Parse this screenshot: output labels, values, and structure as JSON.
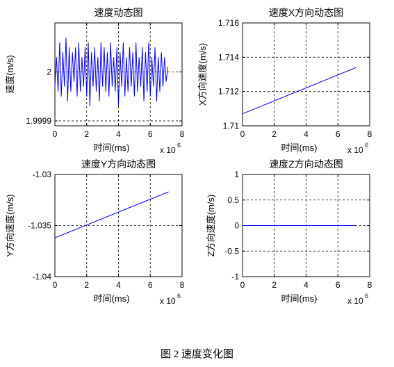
{
  "figure_caption": "图 2  速度变化图",
  "chart_data": [
    {
      "type": "line",
      "title": "速度动态图",
      "xlabel": "时间(ms)",
      "ylabel": "速度(m/s)",
      "x_multiplier": "x 10",
      "x_exponent": "6",
      "xlim": [
        0,
        8
      ],
      "ylim": [
        1.99989,
        2.0001
      ],
      "xticks": [
        "0",
        "2",
        "4",
        "6",
        "8"
      ],
      "yticks": [
        {
          "v": 1.9999,
          "label": "1.9999"
        },
        {
          "v": 2.0,
          "label": "2"
        }
      ],
      "grid": true,
      "line_color": "#0000ff",
      "series": [
        {
          "x": [
            0.0,
            0.1,
            0.2,
            0.3,
            0.4,
            0.5,
            0.6,
            0.7,
            0.8,
            0.9,
            1.0,
            1.1,
            1.2,
            1.3,
            1.4,
            1.5,
            1.6,
            1.7,
            1.8,
            1.9,
            2.0,
            2.1,
            2.2,
            2.3,
            2.4,
            2.5,
            2.6,
            2.7,
            2.8,
            2.9,
            3.0,
            3.1,
            3.2,
            3.3,
            3.4,
            3.5,
            3.6,
            3.7,
            3.8,
            3.9,
            4.0,
            4.1,
            4.2,
            4.3,
            4.4,
            4.5,
            4.6,
            4.7,
            4.8,
            4.9,
            5.0,
            5.1,
            5.2,
            5.3,
            5.4,
            5.5,
            5.6,
            5.7,
            5.8,
            5.9,
            6.0,
            6.1,
            6.2,
            6.3,
            6.4,
            6.5,
            6.6,
            6.7,
            6.8,
            6.9,
            7.0,
            7.1
          ],
          "y": [
            1.99997,
            2.00003,
            1.99996,
            2.00006,
            1.99995,
            2.00004,
            1.99997,
            2.00007,
            1.99994,
            2.00005,
            1.99996,
            2.00004,
            1.99998,
            2.00005,
            1.99995,
            2.00006,
            1.99996,
            2.00003,
            1.99997,
            2.00005,
            1.99995,
            2.00006,
            1.99993,
            2.00004,
            1.99997,
            2.00005,
            1.99996,
            2.00003,
            1.99994,
            2.00006,
            1.99997,
            2.00005,
            1.99996,
            2.00004,
            1.99995,
            2.00006,
            1.99997,
            2.00003,
            1.99996,
            2.00005,
            1.99993,
            2.00004,
            1.99997,
            2.00006,
            1.99995,
            2.00003,
            1.99996,
            2.00005,
            1.99997,
            2.00004,
            1.99995,
            2.00006,
            1.99996,
            2.00003,
            1.99997,
            2.00005,
            1.99994,
            2.00004,
            1.99996,
            2.00006,
            1.99995,
            2.00003,
            1.99997,
            2.00005,
            1.99994,
            2.00003,
            1.99996,
            2.00004,
            1.99997,
            2.00003,
            1.99998,
            2.00001
          ]
        }
      ]
    },
    {
      "type": "line",
      "title": "速度X方向动态图",
      "xlabel": "时间(ms)",
      "ylabel": "X方向速度(m/s)",
      "x_multiplier": "x 10",
      "x_exponent": "6",
      "xlim": [
        0,
        8
      ],
      "ylim": [
        1.71,
        1.716
      ],
      "xticks": [
        "0",
        "2",
        "4",
        "6",
        "8"
      ],
      "yticks": [
        {
          "v": 1.71,
          "label": "1.71"
        },
        {
          "v": 1.712,
          "label": "1.712"
        },
        {
          "v": 1.714,
          "label": "1.714"
        },
        {
          "v": 1.716,
          "label": "1.716"
        }
      ],
      "grid": true,
      "line_color": "#0000ff",
      "series": [
        {
          "x": [
            0,
            7.15
          ],
          "y": [
            1.7107,
            1.7134
          ]
        }
      ]
    },
    {
      "type": "line",
      "title": "速度Y方向动态图",
      "xlabel": "时间(ms)",
      "ylabel": "Y方向速度(m/s)",
      "x_multiplier": "x 10",
      "x_exponent": "6",
      "xlim": [
        0,
        8
      ],
      "ylim": [
        -1.04,
        -1.03
      ],
      "xticks": [
        "0",
        "2",
        "4",
        "6",
        "8"
      ],
      "yticks": [
        {
          "v": -1.03,
          "label": "-1.03"
        },
        {
          "v": -1.035,
          "label": "-1.035"
        },
        {
          "v": -1.04,
          "label": "-1.04"
        }
      ],
      "grid": true,
      "line_color": "#0000ff",
      "series": [
        {
          "x": [
            0,
            7.15
          ],
          "y": [
            -1.0362,
            -1.0317
          ]
        }
      ]
    },
    {
      "type": "line",
      "title": "速度Z方向动态图",
      "xlabel": "时间(ms)",
      "ylabel": "Z方向速度(m/s)",
      "x_multiplier": "x 10",
      "x_exponent": "6",
      "xlim": [
        0,
        8
      ],
      "ylim": [
        -1,
        1
      ],
      "xticks": [
        "0",
        "2",
        "4",
        "6",
        "8"
      ],
      "yticks": [
        {
          "v": -1,
          "label": "-1"
        },
        {
          "v": -0.5,
          "label": "-0.5"
        },
        {
          "v": 0,
          "label": "0"
        },
        {
          "v": 0.5,
          "label": "0.5"
        },
        {
          "v": 1,
          "label": "1"
        }
      ],
      "grid": true,
      "line_color": "#0000ff",
      "series": [
        {
          "x": [
            0,
            7.15
          ],
          "y": [
            0,
            0
          ]
        }
      ]
    }
  ]
}
